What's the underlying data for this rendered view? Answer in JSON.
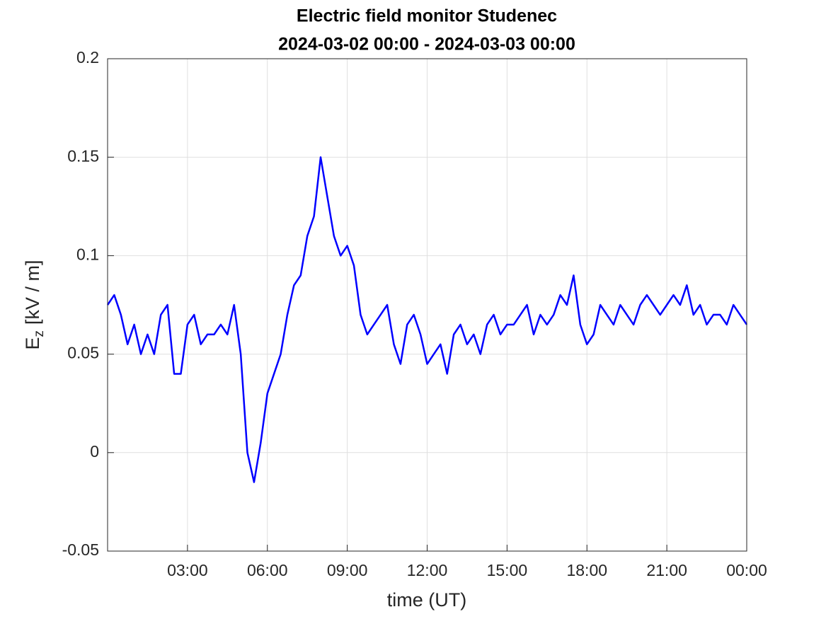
{
  "chart_data": {
    "type": "line",
    "title": [
      "Electric field monitor Studenec",
      "2024-03-02 00:00 - 2024-03-03 00:00"
    ],
    "xlabel": "time (UT)",
    "ylabel": {
      "symbol": "E",
      "subscript": "z",
      "unit": "[kV / m]"
    },
    "xlim": [
      0,
      24
    ],
    "xticks": [
      {
        "value": 3,
        "label": "03:00"
      },
      {
        "value": 6,
        "label": "06:00"
      },
      {
        "value": 9,
        "label": "09:00"
      },
      {
        "value": 12,
        "label": "12:00"
      },
      {
        "value": 15,
        "label": "15:00"
      },
      {
        "value": 18,
        "label": "18:00"
      },
      {
        "value": 21,
        "label": "21:00"
      },
      {
        "value": 24,
        "label": "00:00"
      }
    ],
    "ylim": [
      -0.05,
      0.2
    ],
    "yticks": [
      -0.05,
      0,
      0.05,
      0.1,
      0.15,
      0.2
    ],
    "grid": true,
    "series": [
      {
        "color": "#0000ff",
        "x": [
          0,
          0.25,
          0.5,
          0.75,
          1,
          1.25,
          1.5,
          1.75,
          2,
          2.25,
          2.5,
          2.75,
          3,
          3.25,
          3.5,
          3.75,
          4,
          4.25,
          4.5,
          4.75,
          5,
          5.25,
          5.5,
          5.75,
          6,
          6.25,
          6.5,
          6.75,
          7,
          7.25,
          7.5,
          7.75,
          8,
          8.25,
          8.5,
          8.75,
          9,
          9.25,
          9.5,
          9.75,
          10,
          10.25,
          10.5,
          10.75,
          11,
          11.25,
          11.5,
          11.75,
          12,
          12.25,
          12.5,
          12.75,
          13,
          13.25,
          13.5,
          13.75,
          14,
          14.25,
          14.5,
          14.75,
          15,
          15.25,
          15.5,
          15.75,
          16,
          16.25,
          16.5,
          16.75,
          17,
          17.25,
          17.5,
          17.75,
          18,
          18.25,
          18.5,
          18.75,
          19,
          19.25,
          19.5,
          19.75,
          20,
          20.25,
          20.5,
          20.75,
          21,
          21.25,
          21.5,
          21.75,
          22,
          22.25,
          22.5,
          22.75,
          23,
          23.25,
          23.5,
          23.75,
          24
        ],
        "values": [
          0.075,
          0.08,
          0.07,
          0.055,
          0.065,
          0.05,
          0.06,
          0.05,
          0.07,
          0.075,
          0.04,
          0.04,
          0.065,
          0.07,
          0.055,
          0.06,
          0.06,
          0.065,
          0.06,
          0.075,
          0.05,
          0.0,
          -0.015,
          0.005,
          0.03,
          0.04,
          0.05,
          0.07,
          0.085,
          0.09,
          0.11,
          0.12,
          0.15,
          0.13,
          0.11,
          0.1,
          0.105,
          0.095,
          0.07,
          0.06,
          0.065,
          0.07,
          0.075,
          0.055,
          0.045,
          0.065,
          0.07,
          0.06,
          0.045,
          0.05,
          0.055,
          0.04,
          0.06,
          0.065,
          0.055,
          0.06,
          0.05,
          0.065,
          0.07,
          0.06,
          0.065,
          0.065,
          0.07,
          0.075,
          0.06,
          0.07,
          0.065,
          0.07,
          0.08,
          0.075,
          0.09,
          0.065,
          0.055,
          0.06,
          0.075,
          0.07,
          0.065,
          0.075,
          0.07,
          0.065,
          0.075,
          0.08,
          0.075,
          0.07,
          0.075,
          0.08,
          0.075,
          0.085,
          0.07,
          0.075,
          0.065,
          0.07,
          0.07,
          0.065,
          0.075,
          0.07,
          0.065
        ]
      }
    ]
  }
}
